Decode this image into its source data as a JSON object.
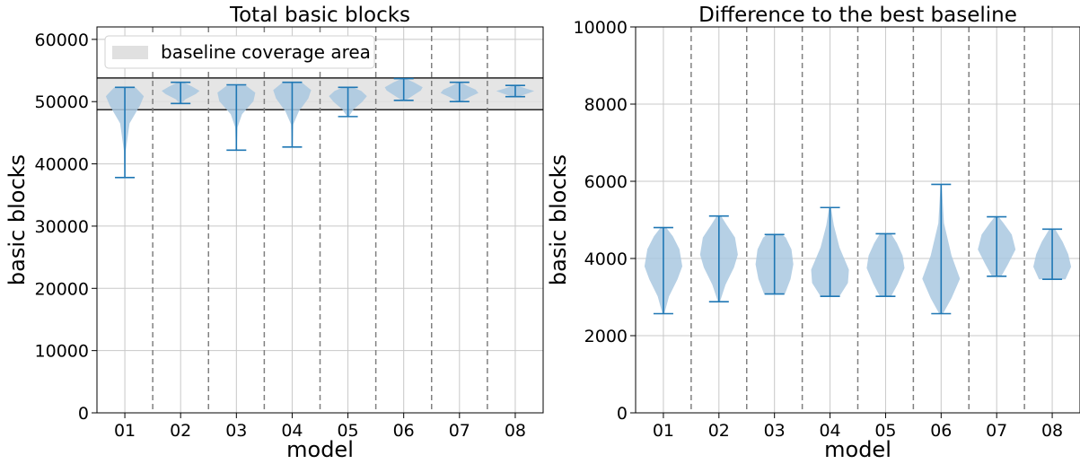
{
  "chart_data": [
    {
      "type": "violin",
      "title": "Total basic blocks",
      "xlabel": "model",
      "ylabel": "basic blocks",
      "categories": [
        "01",
        "02",
        "03",
        "04",
        "05",
        "06",
        "07",
        "08"
      ],
      "ylim": [
        0,
        62000
      ],
      "yticks": [
        "0",
        "10000",
        "20000",
        "30000",
        "40000",
        "50000",
        "60000"
      ],
      "grid": true,
      "group_separators": "dashed lines between models",
      "baseline_band": {
        "label": "baseline coverage area",
        "min": 48700,
        "max": 53800,
        "color": "#e0e0e0"
      },
      "legend": {
        "entries": [
          "baseline coverage area"
        ],
        "placement": "top-left"
      },
      "series": [
        {
          "category": "01",
          "min": 37800,
          "max": 52300
        },
        {
          "category": "02",
          "min": 49700,
          "max": 53100
        },
        {
          "category": "03",
          "min": 42200,
          "max": 52700
        },
        {
          "category": "04",
          "min": 42700,
          "max": 53100
        },
        {
          "category": "05",
          "min": 47600,
          "max": 52300
        },
        {
          "category": "06",
          "min": 50200,
          "max": 53700
        },
        {
          "category": "07",
          "min": 50000,
          "max": 53100
        },
        {
          "category": "08",
          "min": 50800,
          "max": 52600
        }
      ]
    },
    {
      "type": "violin",
      "title": "Difference to the best baseline",
      "xlabel": "model",
      "ylabel": "basic blocks",
      "categories": [
        "01",
        "02",
        "03",
        "04",
        "05",
        "06",
        "07",
        "08"
      ],
      "ylim": [
        0,
        10000
      ],
      "yticks": [
        "0",
        "2000",
        "4000",
        "6000",
        "8000",
        "10000"
      ],
      "grid": true,
      "group_separators": "dashed lines between models",
      "series": [
        {
          "category": "01",
          "min": 2570,
          "max": 4800
        },
        {
          "category": "02",
          "min": 2880,
          "max": 5100
        },
        {
          "category": "03",
          "min": 3080,
          "max": 4620
        },
        {
          "category": "04",
          "min": 3020,
          "max": 5320
        },
        {
          "category": "05",
          "min": 3020,
          "max": 4640
        },
        {
          "category": "06",
          "min": 2570,
          "max": 5920
        },
        {
          "category": "07",
          "min": 3540,
          "max": 5080
        },
        {
          "category": "08",
          "min": 3460,
          "max": 4760
        }
      ]
    }
  ],
  "colors": {
    "violin_fill": "#a9c8e1",
    "violin_line": "#1f77b4",
    "grid": "#c8c8c8",
    "separator": "#808080",
    "band": "#e0e0e0"
  }
}
